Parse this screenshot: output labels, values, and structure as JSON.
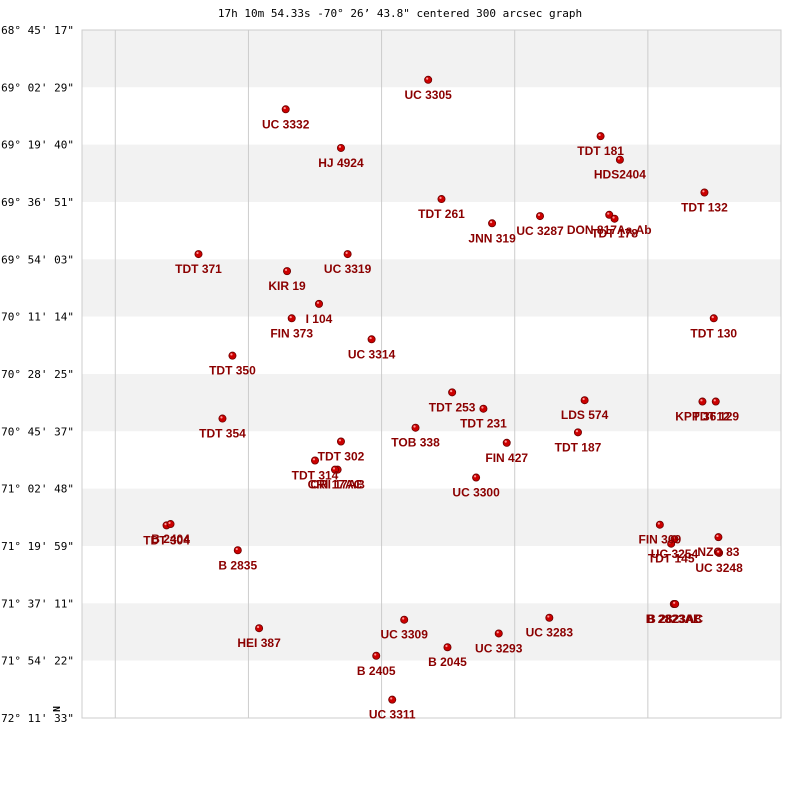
{
  "chart_data": {
    "type": "scatter",
    "title": "17h 10m 54.33s -70° 26’ 43.8\" centered 300 arcsec graph",
    "ylabel": "N",
    "y_ticks": [
      "-68° 45' 17\"",
      "-69° 02' 29\"",
      "-69° 19' 40\"",
      "-69° 36' 51\"",
      "-69° 54' 03\"",
      "-70° 11' 14\"",
      "-70° 28' 25\"",
      "-70° 45' 37\"",
      "-71° 02' 48\"",
      "-71° 19' 59\"",
      "-71° 37' 11\"",
      "-71° 54' 22\"",
      "-72° 11' 33\""
    ],
    "x_range": [
      -5,
      100
    ],
    "y_range": [
      -5,
      100
    ],
    "grid": true,
    "points": [
      {
        "name": "UC 3305",
        "x": 47.0,
        "y": 2.6
      },
      {
        "name": "UC 3332",
        "x": 25.6,
        "y": 7.1
      },
      {
        "name": "HJ 4924",
        "x": 33.9,
        "y": 13.0
      },
      {
        "name": "TDT 181",
        "x": 72.9,
        "y": 11.2
      },
      {
        "name": "HDS2404",
        "x": 75.8,
        "y": 14.8
      },
      {
        "name": "TDT 132",
        "x": 88.5,
        "y": 19.8
      },
      {
        "name": "TDT 261",
        "x": 49.0,
        "y": 20.8
      },
      {
        "name": "JNN 319",
        "x": 56.6,
        "y": 24.5
      },
      {
        "name": "UC 3287",
        "x": 63.8,
        "y": 23.4
      },
      {
        "name": "DON 817Aa,Ab",
        "x": 74.2,
        "y": 23.2
      },
      {
        "name": "TDT 178",
        "x": 75.0,
        "y": 23.8
      },
      {
        "name": "TDT 371",
        "x": 12.5,
        "y": 29.2
      },
      {
        "name": "UC 3319",
        "x": 34.9,
        "y": 29.2
      },
      {
        "name": "KIR  19",
        "x": 25.8,
        "y": 31.8
      },
      {
        "name": "I  104",
        "x": 30.6,
        "y": 36.8
      },
      {
        "name": "FIN 373",
        "x": 26.5,
        "y": 39.0
      },
      {
        "name": "TDT 130",
        "x": 89.9,
        "y": 39.0
      },
      {
        "name": "UC 3314",
        "x": 38.5,
        "y": 42.2
      },
      {
        "name": "TDT 350",
        "x": 17.6,
        "y": 44.7
      },
      {
        "name": "TDT 253",
        "x": 50.6,
        "y": 50.3
      },
      {
        "name": "LDS 574",
        "x": 70.5,
        "y": 51.5
      },
      {
        "name": "TDT 231",
        "x": 55.3,
        "y": 52.8
      },
      {
        "name": "TDT 354",
        "x": 16.1,
        "y": 54.3
      },
      {
        "name": "KPP 3612",
        "x": 88.2,
        "y": 51.7
      },
      {
        "name": "TDT 129",
        "x": 90.2,
        "y": 51.7
      },
      {
        "name": "TOB 338",
        "x": 45.1,
        "y": 55.7
      },
      {
        "name": "TDT 187",
        "x": 69.5,
        "y": 56.4
      },
      {
        "name": "TDT 302",
        "x": 33.9,
        "y": 57.8
      },
      {
        "name": "FIN 427",
        "x": 58.8,
        "y": 58.0
      },
      {
        "name": "TDT 314",
        "x": 30.0,
        "y": 60.7
      },
      {
        "name": "CRI  17AB",
        "x": 33.4,
        "y": 62.1
      },
      {
        "name": "CRI  17AC",
        "x": 33.0,
        "y": 62.1
      },
      {
        "name": "UC 3300",
        "x": 54.2,
        "y": 63.3
      },
      {
        "name": "TDT 304",
        "x": 7.7,
        "y": 70.6
      },
      {
        "name": "B 2404",
        "x": 8.3,
        "y": 70.4
      },
      {
        "name": "FIN 309",
        "x": 81.8,
        "y": 70.5
      },
      {
        "name": "UC 3254",
        "x": 84.0,
        "y": 72.7
      },
      {
        "name": "NZO  83",
        "x": 90.6,
        "y": 72.4
      },
      {
        "name": "TDT 145",
        "x": 83.5,
        "y": 73.4
      },
      {
        "name": "UC 3248",
        "x": 90.7,
        "y": 74.8
      },
      {
        "name": "B  2835",
        "x": 18.4,
        "y": 74.4
      },
      {
        "name": "B  2823AB",
        "x": 83.9,
        "y": 82.6
      },
      {
        "name": "B  2823AC",
        "x": 84.1,
        "y": 82.6
      },
      {
        "name": "UC 3309",
        "x": 43.4,
        "y": 85.0
      },
      {
        "name": "UC 3283",
        "x": 65.2,
        "y": 84.7
      },
      {
        "name": "HEI 387",
        "x": 21.6,
        "y": 86.3
      },
      {
        "name": "UC 3293",
        "x": 57.6,
        "y": 87.1
      },
      {
        "name": "B  2045",
        "x": 49.9,
        "y": 89.2
      },
      {
        "name": "B  2405",
        "x": 39.2,
        "y": 90.5
      },
      {
        "name": "UC 3311",
        "x": 41.6,
        "y": 97.2
      }
    ]
  }
}
